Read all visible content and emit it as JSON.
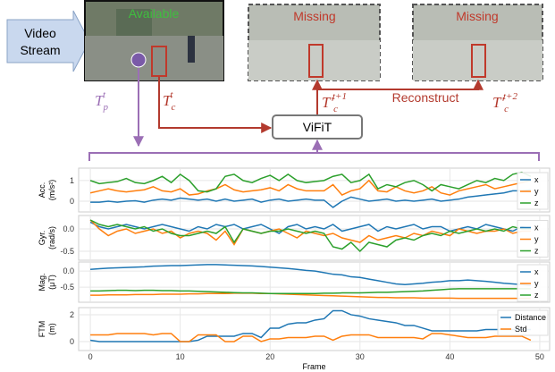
{
  "diagram": {
    "source": [
      "Video",
      "Stream"
    ],
    "frames": [
      {
        "status": "Available"
      },
      {
        "status": "Missing"
      },
      {
        "status": "Missing"
      }
    ],
    "phone_label": {
      "base": "T",
      "sub": "p",
      "sup": "t"
    },
    "camera_label": {
      "base": "T",
      "sub": "c",
      "sup": "t"
    },
    "recon_label_1": {
      "base": "T'",
      "sub": "c",
      "sup": "t+1"
    },
    "recon_label_2": {
      "base": "T'",
      "sub": "c",
      "sup": "t+2"
    },
    "action": "Reconstruct",
    "model": "ViFiT"
  },
  "chart_data": [
    {
      "type": "line",
      "ylabel": [
        "Acc.",
        "(m/s²)"
      ],
      "legend": "right",
      "grid": true,
      "x": [
        0,
        1,
        2,
        3,
        4,
        5,
        6,
        7,
        8,
        9,
        10,
        11,
        12,
        13,
        14,
        15,
        16,
        17,
        18,
        19,
        20,
        21,
        22,
        23,
        24,
        25,
        26,
        27,
        28,
        29,
        30,
        31,
        32,
        33,
        34,
        35,
        36,
        37,
        38,
        39,
        40,
        41,
        42,
        43,
        44,
        45,
        46,
        47,
        48,
        49
      ],
      "xlim": [
        -1.3,
        51.1
      ],
      "xticks": [
        0,
        10,
        20,
        30,
        40,
        50
      ],
      "ylim": [
        -0.52,
        1.6
      ],
      "yticks": [
        0,
        1
      ],
      "series": [
        {
          "name": "x",
          "color": "#1f77b4",
          "values": [
            -0.05,
            -0.05,
            0.0,
            -0.05,
            0,
            0.02,
            -0.05,
            0.05,
            0.1,
            0.05,
            0.15,
            0.1,
            0.05,
            0.1,
            0.0,
            0.1,
            0.0,
            0.05,
            0.1,
            -0.05,
            0.05,
            0.1,
            0.0,
            0.05,
            0.1,
            0.05,
            0.05,
            -0.3,
            0.0,
            0.2,
            0.1,
            0.0,
            0.05,
            0.1,
            0.0,
            0.05,
            0.0,
            0.05,
            0.1,
            0.0,
            0.05,
            0.1,
            0.2,
            0.25,
            0.3,
            0.35,
            0.4,
            0.5,
            0.5,
            0.55
          ]
        },
        {
          "name": "y",
          "color": "#ff7f0e",
          "values": [
            0.4,
            0.5,
            0.6,
            0.5,
            0.45,
            0.5,
            0.55,
            0.7,
            0.5,
            0.45,
            0.6,
            0.3,
            0.35,
            0.5,
            0.6,
            0.8,
            0.55,
            0.45,
            0.5,
            0.55,
            0.65,
            0.5,
            0.8,
            0.6,
            0.5,
            0.5,
            0.5,
            0.8,
            0.3,
            0.5,
            0.6,
            1.0,
            0.5,
            0.45,
            0.7,
            0.5,
            0.4,
            0.5,
            0.7,
            0.4,
            0.3,
            0.5,
            0.6,
            0.7,
            0.8,
            0.6,
            0.7,
            0.8,
            0.9,
            1.0
          ]
        },
        {
          "name": "z",
          "color": "#2ca02c",
          "values": [
            1.0,
            0.85,
            0.9,
            0.95,
            1.1,
            0.9,
            0.85,
            1.0,
            1.2,
            0.9,
            1.3,
            1.0,
            0.5,
            0.45,
            0.6,
            1.2,
            1.3,
            1.0,
            0.9,
            1.1,
            1.25,
            1.0,
            1.3,
            1.0,
            0.9,
            0.95,
            1.0,
            1.2,
            1.3,
            0.9,
            1.0,
            1.3,
            0.6,
            0.8,
            0.7,
            0.9,
            1.0,
            0.8,
            0.5,
            0.8,
            0.7,
            0.6,
            0.8,
            1.0,
            0.9,
            1.1,
            1.0,
            1.3,
            1.4,
            1.2
          ]
        }
      ]
    },
    {
      "type": "line",
      "ylabel": [
        "Gyr.",
        "(rad/s)"
      ],
      "legend": "right",
      "grid": true,
      "x": [
        0,
        1,
        2,
        3,
        4,
        5,
        6,
        7,
        8,
        9,
        10,
        11,
        12,
        13,
        14,
        15,
        16,
        17,
        18,
        19,
        20,
        21,
        22,
        23,
        24,
        25,
        26,
        27,
        28,
        29,
        30,
        31,
        32,
        33,
        34,
        35,
        36,
        37,
        38,
        39,
        40,
        41,
        42,
        43,
        44,
        45,
        46,
        47,
        48,
        49
      ],
      "xlim": [
        -1.3,
        51.1
      ],
      "xticks": [
        0,
        10,
        20,
        30,
        40,
        50
      ],
      "ylim": [
        -0.7,
        0.3
      ],
      "yticks": [
        {
          "value": 0,
          "label": "0.0"
        },
        {
          "value": -0.5,
          "label": "-0.5"
        }
      ],
      "series": [
        {
          "name": "x",
          "color": "#1f77b4",
          "values": [
            0.15,
            0.05,
            0.0,
            0.05,
            0.1,
            0.05,
            0.0,
            0.05,
            0.1,
            0.05,
            0.0,
            -0.05,
            0.05,
            0.0,
            0.1,
            0.05,
            0.1,
            0.0,
            0.05,
            0.1,
            0.0,
            -0.1,
            0.05,
            0.1,
            0.0,
            0.05,
            0.0,
            0.1,
            -0.05,
            0.0,
            0.05,
            0.1,
            -0.05,
            0.05,
            0.0,
            0.05,
            0.1,
            0.0,
            0.05,
            0.05,
            -0.05,
            0.0,
            0.05,
            0.0,
            0.1,
            0.05,
            0.0,
            -0.05,
            0.05,
            0.0
          ]
        },
        {
          "name": "y",
          "color": "#ff7f0e",
          "values": [
            0.2,
            0.0,
            -0.15,
            -0.05,
            0.0,
            -0.1,
            -0.05,
            0.0,
            -0.1,
            -0.05,
            -0.2,
            -0.1,
            -0.05,
            -0.1,
            -0.25,
            -0.05,
            -0.35,
            0.0,
            -0.05,
            -0.1,
            -0.05,
            0.0,
            -0.1,
            -0.2,
            -0.05,
            -0.1,
            -0.15,
            -0.1,
            -0.2,
            -0.25,
            -0.3,
            -0.15,
            -0.25,
            -0.2,
            -0.15,
            -0.2,
            -0.1,
            -0.15,
            -0.05,
            -0.1,
            -0.15,
            0.0,
            -0.05,
            -0.1,
            -0.05,
            -0.05,
            0.0,
            -0.1,
            -0.05,
            -0.05
          ]
        },
        {
          "name": "z",
          "color": "#2ca02c",
          "values": [
            0.2,
            0.1,
            0.05,
            0.1,
            0.05,
            0.0,
            0.05,
            -0.05,
            0.0,
            -0.1,
            -0.15,
            -0.15,
            -0.1,
            -0.05,
            -0.1,
            0.05,
            -0.3,
            0.0,
            -0.05,
            -0.1,
            -0.05,
            -0.05,
            0.0,
            -0.05,
            -0.1,
            -0.05,
            -0.1,
            -0.4,
            -0.45,
            -0.3,
            -0.5,
            -0.3,
            -0.35,
            -0.4,
            -0.25,
            -0.2,
            -0.25,
            -0.15,
            -0.1,
            -0.15,
            -0.05,
            -0.1,
            -0.05,
            0.0,
            -0.05,
            0.0,
            -0.05,
            0.05,
            0.0,
            0.0
          ]
        }
      ]
    },
    {
      "type": "line",
      "ylabel": [
        "Mag.",
        "(μT)"
      ],
      "legend": "right",
      "grid": true,
      "x": [
        0,
        1,
        2,
        3,
        4,
        5,
        6,
        7,
        8,
        9,
        10,
        11,
        12,
        13,
        14,
        15,
        16,
        17,
        18,
        19,
        20,
        21,
        22,
        23,
        24,
        25,
        26,
        27,
        28,
        29,
        30,
        31,
        32,
        33,
        34,
        35,
        36,
        37,
        38,
        39,
        40,
        41,
        42,
        43,
        44,
        45,
        46,
        47,
        48,
        49
      ],
      "xlim": [
        -1.3,
        51.1
      ],
      "xticks": [
        0,
        10,
        20,
        30,
        40,
        50
      ],
      "ylim": [
        -0.97,
        0.28
      ],
      "yticks": [
        {
          "value": 0,
          "label": "0.0"
        },
        {
          "value": -0.5,
          "label": "-0.5"
        }
      ],
      "series": [
        {
          "name": "x",
          "color": "#1f77b4",
          "values": [
            0.05,
            0.07,
            0.09,
            0.1,
            0.11,
            0.12,
            0.13,
            0.15,
            0.16,
            0.17,
            0.17,
            0.18,
            0.19,
            0.2,
            0.2,
            0.19,
            0.18,
            0.17,
            0.16,
            0.14,
            0.12,
            0.1,
            0.08,
            0.05,
            0.02,
            0.0,
            -0.05,
            -0.1,
            -0.12,
            -0.18,
            -0.2,
            -0.25,
            -0.3,
            -0.35,
            -0.4,
            -0.42,
            -0.4,
            -0.38,
            -0.35,
            -0.33,
            -0.3,
            -0.3,
            -0.28,
            -0.3,
            -0.32,
            -0.35,
            -0.38,
            -0.4,
            -0.42,
            -0.45
          ]
        },
        {
          "name": "y",
          "color": "#ff7f0e",
          "values": [
            -0.75,
            -0.75,
            -0.74,
            -0.74,
            -0.74,
            -0.73,
            -0.73,
            -0.73,
            -0.72,
            -0.72,
            -0.72,
            -0.71,
            -0.71,
            -0.7,
            -0.7,
            -0.7,
            -0.69,
            -0.69,
            -0.69,
            -0.7,
            -0.7,
            -0.71,
            -0.72,
            -0.73,
            -0.74,
            -0.75,
            -0.76,
            -0.77,
            -0.78,
            -0.79,
            -0.8,
            -0.81,
            -0.82,
            -0.82,
            -0.83,
            -0.83,
            -0.83,
            -0.84,
            -0.84,
            -0.84,
            -0.84,
            -0.85,
            -0.85,
            -0.85,
            -0.85,
            -0.85,
            -0.85,
            -0.85,
            -0.85,
            -0.85
          ]
        },
        {
          "name": "z",
          "color": "#2ca02c",
          "values": [
            -0.62,
            -0.62,
            -0.61,
            -0.6,
            -0.6,
            -0.61,
            -0.6,
            -0.6,
            -0.61,
            -0.61,
            -0.62,
            -0.62,
            -0.63,
            -0.64,
            -0.65,
            -0.66,
            -0.67,
            -0.68,
            -0.68,
            -0.69,
            -0.7,
            -0.7,
            -0.7,
            -0.7,
            -0.7,
            -0.7,
            -0.69,
            -0.69,
            -0.68,
            -0.68,
            -0.68,
            -0.67,
            -0.66,
            -0.66,
            -0.65,
            -0.64,
            -0.63,
            -0.62,
            -0.6,
            -0.58,
            -0.56,
            -0.55,
            -0.55,
            -0.55,
            -0.55,
            -0.55,
            -0.55,
            -0.55,
            -0.55,
            -0.55
          ]
        }
      ]
    },
    {
      "type": "line",
      "ylabel": [
        "FTM",
        "(m)"
      ],
      "xlabel": "Frame",
      "legend": "upper right",
      "grid": true,
      "x": [
        0,
        1,
        2,
        3,
        4,
        5,
        6,
        7,
        8,
        9,
        10,
        11,
        12,
        13,
        14,
        15,
        16,
        17,
        18,
        19,
        20,
        21,
        22,
        23,
        24,
        25,
        26,
        27,
        28,
        29,
        30,
        31,
        32,
        33,
        34,
        35,
        36,
        37,
        38,
        39,
        40,
        41,
        42,
        43,
        44,
        45,
        46,
        47,
        48,
        49
      ],
      "xlim": [
        -1.3,
        51.1
      ],
      "xticks": [
        0,
        10,
        20,
        30,
        40,
        50
      ],
      "ylim": [
        -0.67,
        2.53
      ],
      "yticks": [
        0,
        2
      ],
      "series": [
        {
          "name": "Distance",
          "color": "#1f77b4",
          "values": [
            0.1,
            0.0,
            0.0,
            0.0,
            0.0,
            0.0,
            0.0,
            0.0,
            0.0,
            0.0,
            0.0,
            0.0,
            0.1,
            0.4,
            0.4,
            0.4,
            0.4,
            0.6,
            0.6,
            0.3,
            1.0,
            1.0,
            1.3,
            1.4,
            1.4,
            1.6,
            1.7,
            2.3,
            2.3,
            2.0,
            1.9,
            1.7,
            1.6,
            1.5,
            1.4,
            1.2,
            1.2,
            1.0,
            0.8,
            0.8,
            0.8,
            0.8,
            0.8,
            0.8,
            0.9,
            0.9,
            0.9,
            0.9,
            0.9,
            0.9
          ]
        },
        {
          "name": "Std",
          "color": "#ff7f0e",
          "values": [
            0.5,
            0.5,
            0.5,
            0.6,
            0.6,
            0.6,
            0.6,
            0.5,
            0.6,
            0.6,
            0.0,
            0.0,
            0.5,
            0.5,
            0.5,
            0.0,
            0.0,
            0.4,
            0.4,
            0.0,
            0.2,
            0.2,
            0.3,
            0.3,
            0.3,
            0.4,
            0.4,
            0.1,
            0.4,
            0.5,
            0.5,
            0.5,
            0.3,
            0.3,
            0.3,
            0.3,
            0.3,
            0.2,
            0.6,
            0.6,
            0.5,
            0.4,
            0.3,
            0.3,
            0.3,
            0.4,
            0.4,
            0.4,
            0.4,
            0.1
          ]
        }
      ]
    }
  ]
}
